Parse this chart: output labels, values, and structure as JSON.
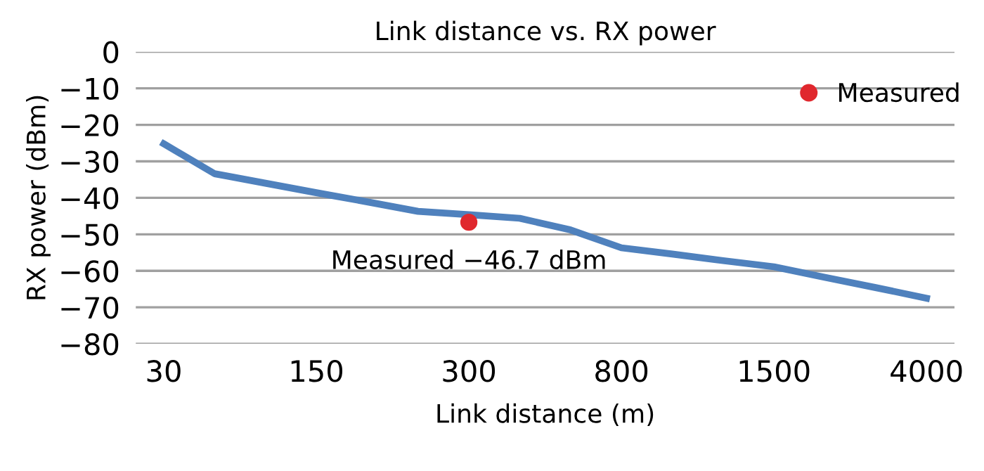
{
  "chart_data": {
    "type": "line",
    "title": "Link distance vs. RX power",
    "xlabel": "Link distance (m)",
    "ylabel": "RX power (dBm)",
    "categories": [
      "30",
      null,
      null,
      "150",
      null,
      null,
      "300",
      null,
      null,
      "800",
      null,
      null,
      "1500",
      null,
      null,
      "4000"
    ],
    "series": [
      {
        "color": "#4f81bd",
        "values": [
          -25.2,
          -33.4,
          -36.0,
          -38.6,
          -41.1,
          -43.7,
          -44.6,
          -45.6,
          -48.8,
          -53.7,
          -55.4,
          -57.2,
          -58.9,
          -61.8,
          -64.6,
          -67.5
        ]
      },
      {
        "type": "scatter",
        "name": "Measured",
        "color": "#e0282e",
        "marker": "circle",
        "x": [
          "300"
        ],
        "values": [
          -46.7
        ]
      }
    ],
    "ylim": [
      -80,
      0
    ],
    "yticks": [
      0,
      -10,
      -20,
      -30,
      -40,
      -50,
      -60,
      -70,
      -80
    ],
    "grid": "y",
    "legend": "top right",
    "line_style": "solid",
    "annotations": [
      {
        "text": "Measured −46.7 dBm",
        "x": "300",
        "y": -46.7
      }
    ]
  }
}
